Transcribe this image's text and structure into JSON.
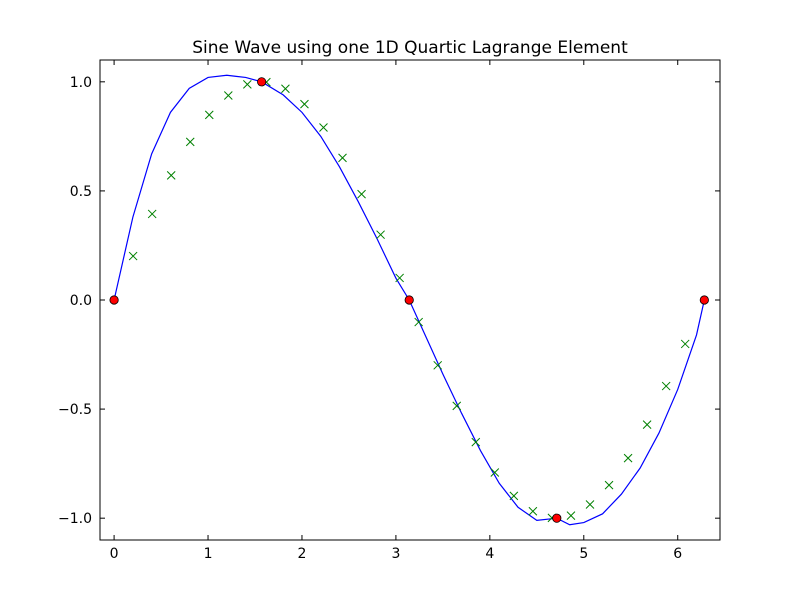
{
  "chart_data": {
    "type": "line",
    "title": "Sine Wave using one 1D Quartic Lagrange Element",
    "xlabel": "",
    "ylabel": "",
    "xlim": [
      -0.15,
      6.45
    ],
    "ylim": [
      -1.1,
      1.1
    ],
    "xticks": [
      0,
      1,
      2,
      3,
      4,
      5,
      6
    ],
    "xtick_labels": [
      "0",
      "1",
      "2",
      "3",
      "4",
      "5",
      "6"
    ],
    "yticks": [
      1.0,
      0.5,
      0.0,
      -0.5,
      -1.0
    ],
    "ytick_labels": [
      "1.0",
      "0.5",
      "0.0",
      "−0.5",
      "−1.0"
    ],
    "grid": false,
    "series": [
      {
        "kind": "line",
        "color": "#0000ff",
        "x": [
          0,
          0.2,
          0.4,
          0.6,
          0.8,
          1.0,
          1.2,
          1.3,
          1.4,
          1.571,
          1.8,
          2.0,
          2.2,
          2.4,
          2.6,
          2.8,
          3.0,
          3.1416,
          3.3,
          3.5,
          3.7,
          3.9,
          4.1,
          4.3,
          4.5,
          4.7124,
          4.85,
          5.0,
          5.2,
          5.4,
          5.6,
          5.8,
          6.0,
          6.2,
          6.2832
        ],
        "y": [
          0,
          0.38,
          0.67,
          0.86,
          0.97,
          1.02,
          1.03,
          1.025,
          1.02,
          1.0,
          0.94,
          0.86,
          0.75,
          0.61,
          0.45,
          0.28,
          0.1,
          0.0,
          -0.15,
          -0.34,
          -0.52,
          -0.69,
          -0.84,
          -0.95,
          -1.01,
          -1.0,
          -1.03,
          -1.02,
          -0.98,
          -0.89,
          -0.77,
          -0.61,
          -0.41,
          -0.16,
          0.0
        ]
      },
      {
        "kind": "markers",
        "marker": "x",
        "color": "#008000",
        "x": [
          0.2026,
          0.4053,
          0.6079,
          0.8106,
          1.0132,
          1.2159,
          1.4185,
          1.6212,
          1.8238,
          2.0265,
          2.2291,
          2.4317,
          2.6344,
          2.837,
          3.0397,
          3.2423,
          3.445,
          3.6476,
          3.8503,
          4.0529,
          4.2556,
          4.4582,
          4.6608,
          4.8635,
          5.0661,
          5.2688,
          5.4714,
          5.6741,
          5.8767,
          6.0794
        ],
        "y": [
          0.2013,
          0.3944,
          0.5713,
          0.7248,
          0.8486,
          0.9372,
          0.9884,
          0.9987,
          0.9682,
          0.8978,
          0.7908,
          0.6513,
          0.4853,
          0.2994,
          0.1012,
          -0.1012,
          -0.2994,
          -0.4853,
          -0.6513,
          -0.7908,
          -0.8978,
          -0.9682,
          -0.9987,
          -0.9884,
          -0.9372,
          -0.8486,
          -0.7248,
          -0.5713,
          -0.3944,
          -0.2013
        ]
      },
      {
        "kind": "markers",
        "marker": "circle",
        "color": "#ff0000",
        "x": [
          0,
          1.5708,
          3.1416,
          4.7124,
          6.2832
        ],
        "y": [
          0,
          1,
          0,
          -1,
          0
        ]
      }
    ]
  }
}
